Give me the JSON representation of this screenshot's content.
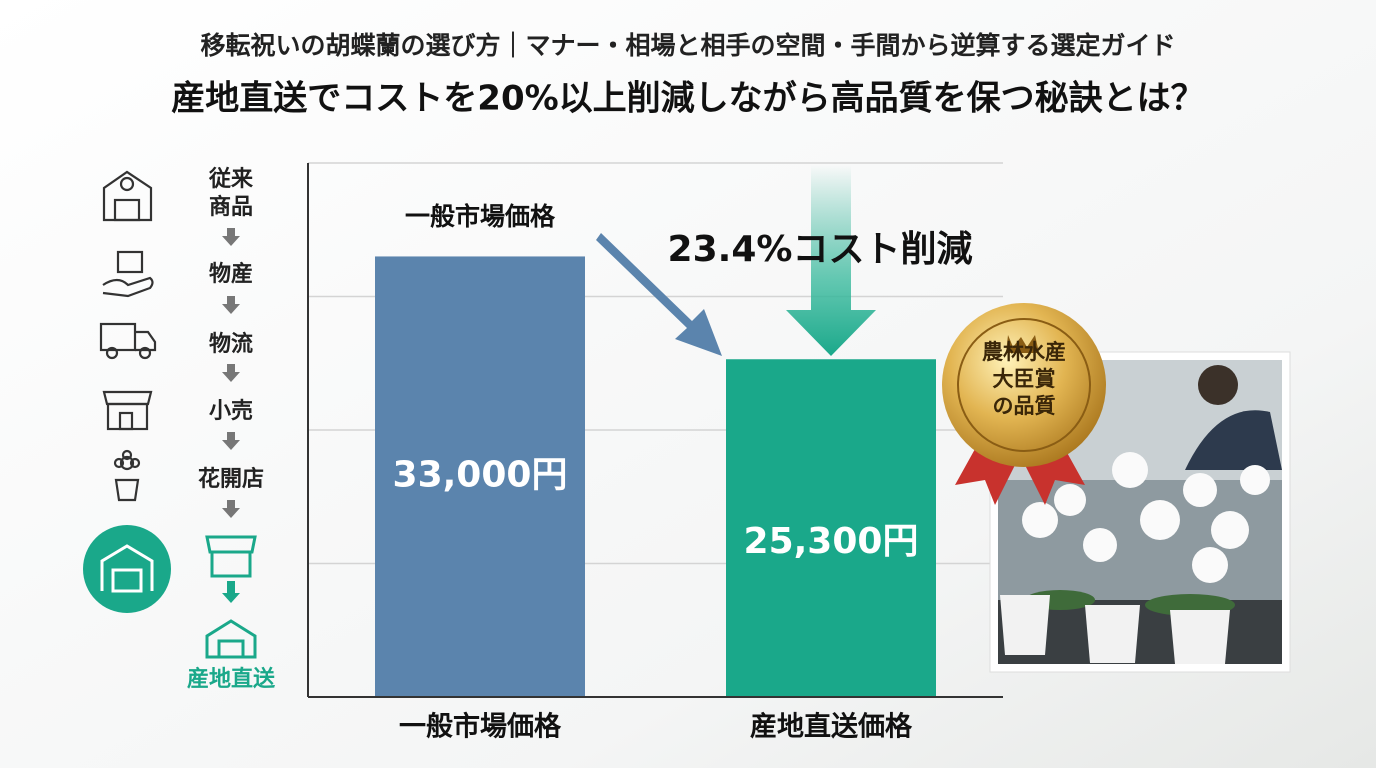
{
  "chart_data": {
    "type": "bar",
    "title": "移転祝いの胡蝶蘭の選び方｜マナー・相場と相手の空間・手間から逆算する選定ガイド",
    "subtitle": "産地直送でコストを20%以上削減しながら高品質を保つ秘訣とは？",
    "categories": [
      "一般市場価格",
      "産地直送価格"
    ],
    "values": [
      33000,
      25300
    ],
    "value_labels": [
      "33,000円",
      "25,300円"
    ],
    "colors": [
      "#5b84ad",
      "#1aa88a"
    ],
    "ylim": [
      0,
      40000
    ],
    "grid": true,
    "annotations": [
      "一般市場価格",
      "23.4%コスト削減"
    ]
  },
  "flow": [
    [
      "従来",
      "商品"
    ],
    [
      "物産"
    ],
    [
      "物流"
    ],
    [
      "小売"
    ],
    [
      "花開店"
    ],
    [
      "産地直送"
    ]
  ],
  "badge": [
    "農林水産",
    "大臣賞",
    "の品質"
  ]
}
